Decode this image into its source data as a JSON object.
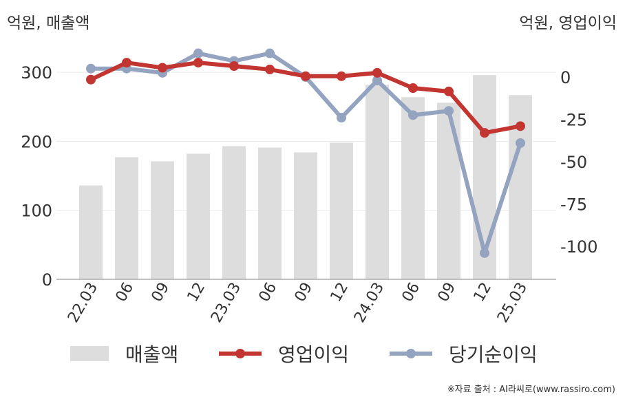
{
  "left_unit": "억원, 매출액",
  "right_unit": "억원, 영업이익",
  "source": "※자료 출처 : AI라씨로(www.rassiro.com)",
  "colors": {
    "bar": "#dddddd",
    "operating": "#c23531",
    "net": "#94a3bf",
    "axis": "#aaaaaa",
    "grid": "#e9e9e9"
  },
  "legend": {
    "bar_label": "매출액",
    "operating_label": "영업이익",
    "net_label": "당기순이익"
  },
  "chart_data": {
    "type": "bar",
    "categories": [
      "22.03",
      "06",
      "09",
      "12",
      "23.03",
      "06",
      "09",
      "12",
      "24.03",
      "06",
      "09",
      "12",
      "25.03"
    ],
    "y_left": {
      "ylim": [
        0,
        345
      ],
      "ticks": [
        0,
        100,
        200,
        300
      ]
    },
    "y_right": {
      "ylim": [
        -120,
        18
      ],
      "ticks": [
        0,
        -25,
        -50,
        -75,
        -100
      ]
    },
    "series": [
      {
        "name": "매출액",
        "type": "bar",
        "axis": "left",
        "values": [
          136,
          177,
          171,
          182,
          193,
          191,
          184,
          198,
          282,
          264,
          256,
          296,
          267
        ]
      },
      {
        "name": "영업이익",
        "type": "line",
        "axis": "right",
        "values": [
          -1.5,
          8.5,
          5.5,
          8.5,
          6.5,
          4.5,
          0.5,
          0.5,
          2.5,
          -6.5,
          -8.5,
          -33,
          -29
        ]
      },
      {
        "name": "당기순이익",
        "type": "line",
        "axis": "right",
        "values": [
          5,
          5,
          2.5,
          14,
          9.5,
          14,
          0,
          -24,
          -2,
          -22.5,
          -20,
          -104,
          -39
        ]
      }
    ]
  }
}
